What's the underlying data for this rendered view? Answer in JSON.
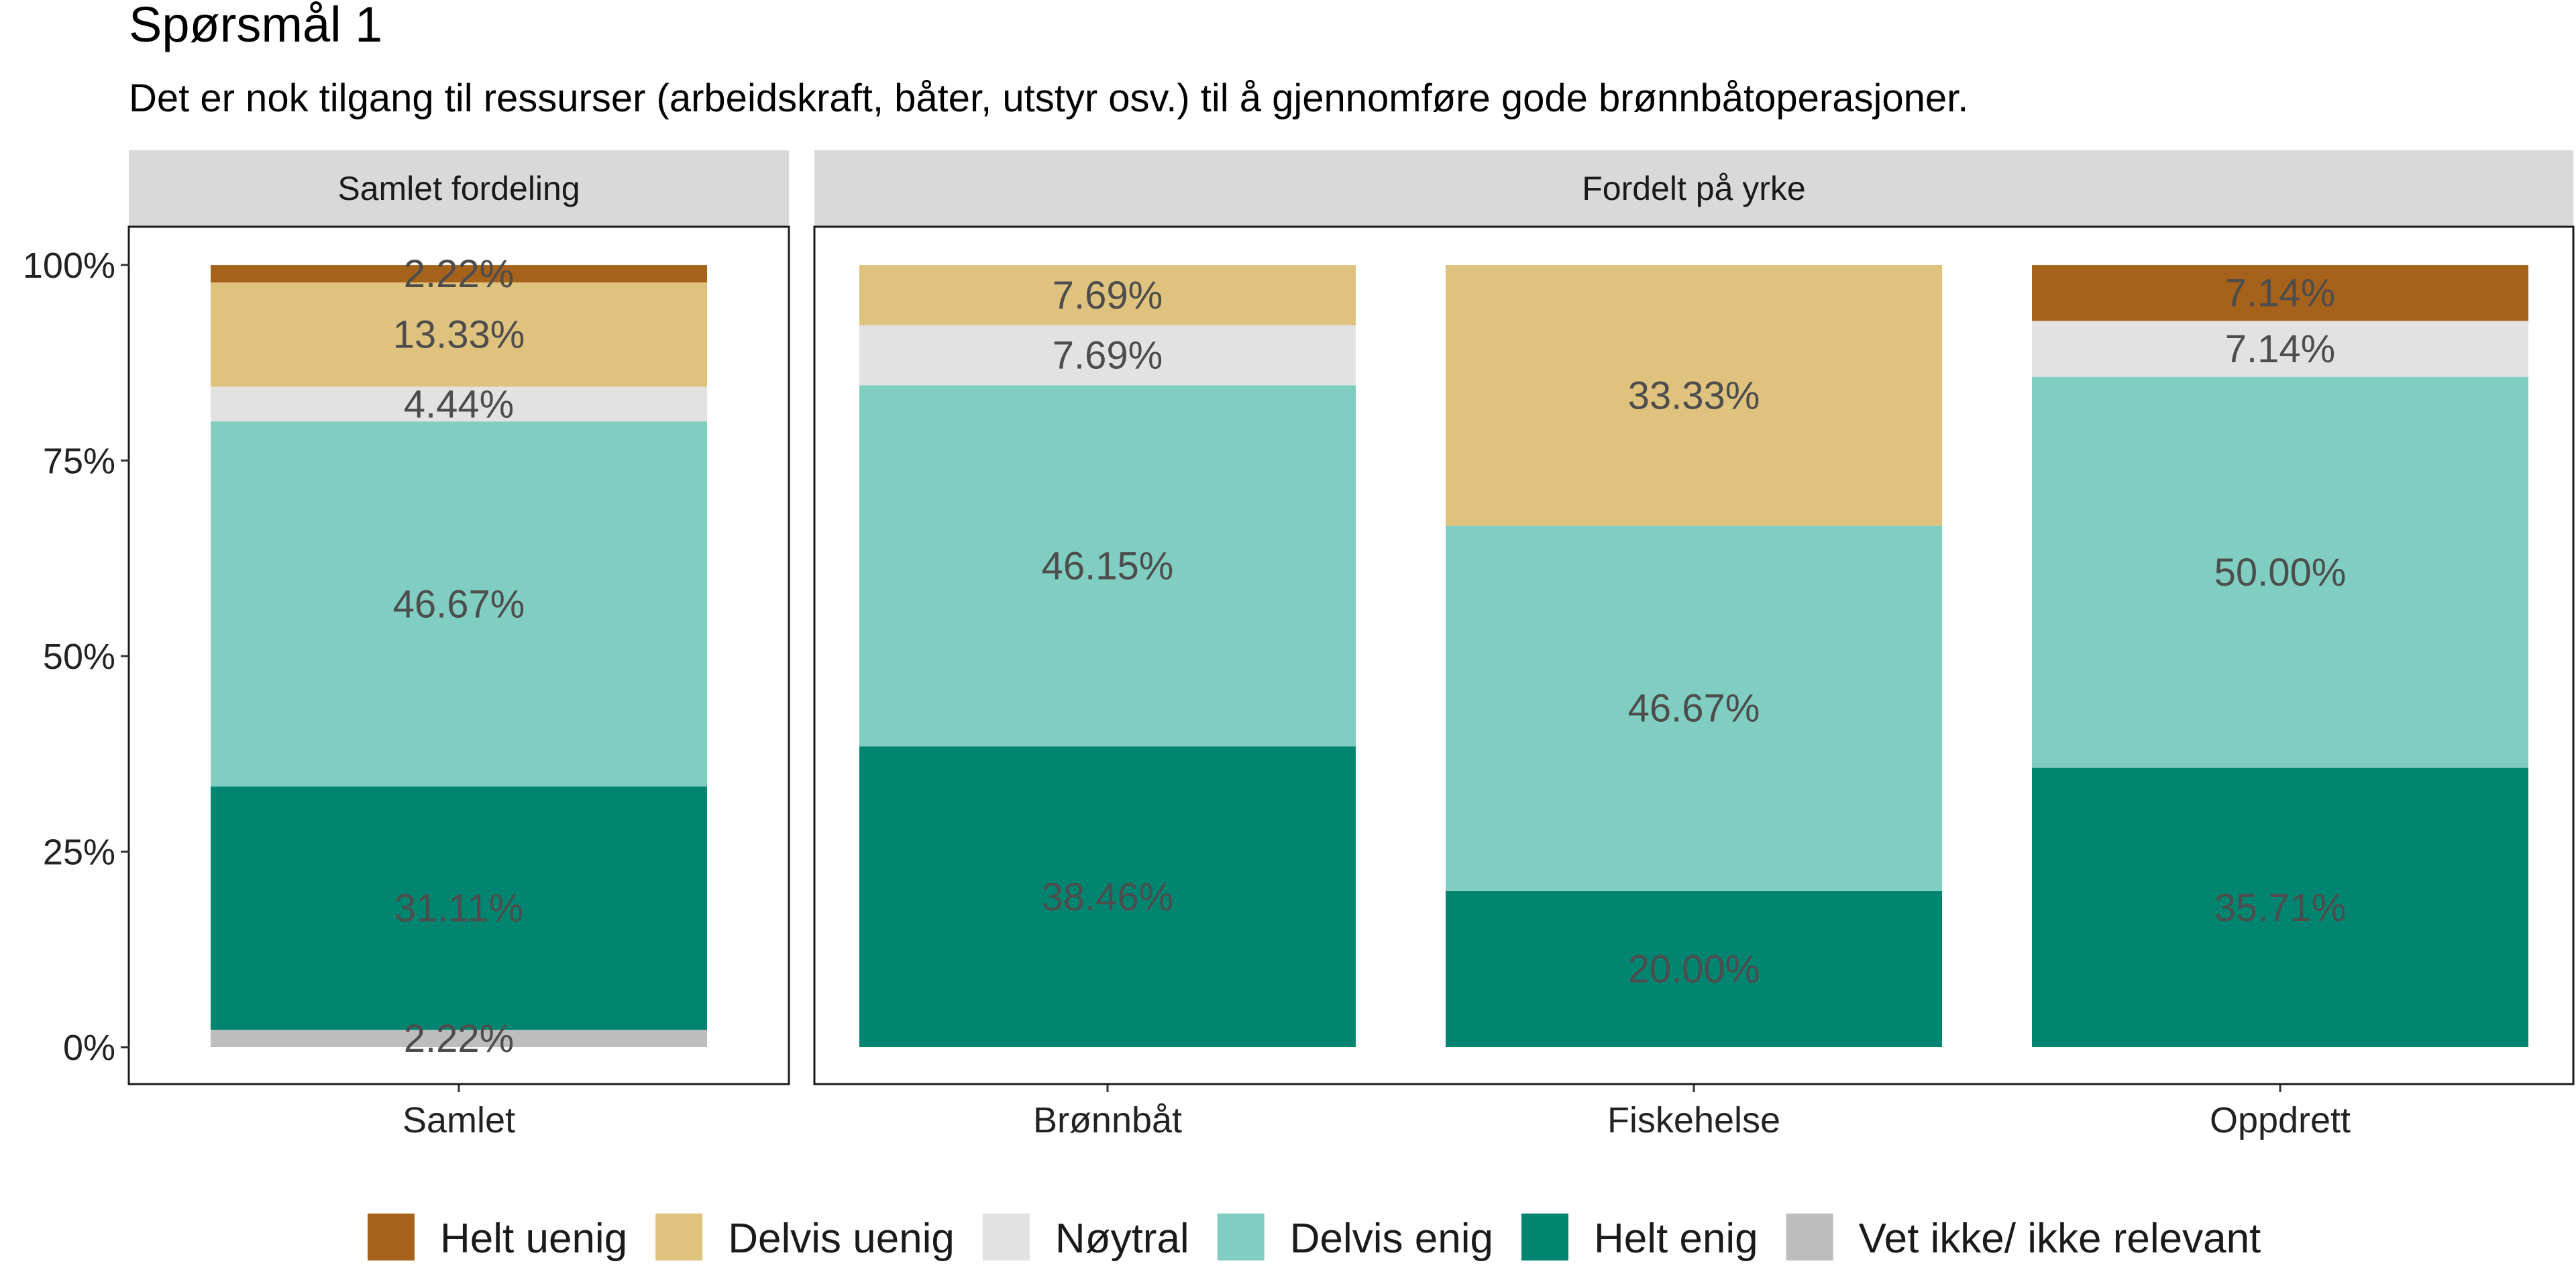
{
  "chart_data": {
    "type": "bar",
    "stacked": true,
    "percent": true,
    "title": "Spørsmål 1",
    "subtitle": "Det er nok tilgang til ressurser (arbeidskraft, båter, utstyr osv.) til å gjennomføre gode brønnbåtoperasjoner.",
    "ylim": [
      0,
      100
    ],
    "yticks": [
      "0%",
      "25%",
      "50%",
      "75%",
      "100%"
    ],
    "ytick_values": [
      0,
      25,
      50,
      75,
      100
    ],
    "legend_position": "bottom",
    "series": [
      {
        "name": "Vet ikke/ ikke relevant",
        "color": "#bdbdbd"
      },
      {
        "name": "Helt enig",
        "color": "#018571"
      },
      {
        "name": "Delvis enig",
        "color": "#80cdc1"
      },
      {
        "name": "Nøytral",
        "color": "#e2e2e2"
      },
      {
        "name": "Delvis uenig",
        "color": "#dfc27d"
      },
      {
        "name": "Helt uenig",
        "color": "#a6611a"
      }
    ],
    "legend_order": [
      "Helt uenig",
      "Delvis uenig",
      "Nøytral",
      "Delvis enig",
      "Helt enig",
      "Vet ikke/ ikke relevant"
    ],
    "panels": [
      {
        "strip": "Samlet fordeling",
        "categories": [
          "Samlet"
        ],
        "bars": [
          {
            "category": "Samlet",
            "segments": [
              {
                "series": "Vet ikke/ ikke relevant",
                "value": 2.22,
                "label": "2.22%"
              },
              {
                "series": "Helt enig",
                "value": 31.11,
                "label": "31.11%"
              },
              {
                "series": "Delvis enig",
                "value": 46.67,
                "label": "46.67%"
              },
              {
                "series": "Nøytral",
                "value": 4.44,
                "label": "4.44%"
              },
              {
                "series": "Delvis uenig",
                "value": 13.33,
                "label": "13.33%"
              },
              {
                "series": "Helt uenig",
                "value": 2.22,
                "label": "2.22%"
              }
            ]
          }
        ]
      },
      {
        "strip": "Fordelt på yrke",
        "categories": [
          "Brønnbåt",
          "Fiskehelse",
          "Oppdrett"
        ],
        "bars": [
          {
            "category": "Brønnbåt",
            "segments": [
              {
                "series": "Helt enig",
                "value": 38.46,
                "label": "38.46%"
              },
              {
                "series": "Delvis enig",
                "value": 46.15,
                "label": "46.15%"
              },
              {
                "series": "Nøytral",
                "value": 7.69,
                "label": "7.69%"
              },
              {
                "series": "Delvis uenig",
                "value": 7.69,
                "label": "7.69%"
              }
            ]
          },
          {
            "category": "Fiskehelse",
            "segments": [
              {
                "series": "Helt enig",
                "value": 20.0,
                "label": "20.00%"
              },
              {
                "series": "Delvis enig",
                "value": 46.67,
                "label": "46.67%"
              },
              {
                "series": "Delvis uenig",
                "value": 33.33,
                "label": "33.33%"
              }
            ]
          },
          {
            "category": "Oppdrett",
            "segments": [
              {
                "series": "Helt enig",
                "value": 35.71,
                "label": "35.71%"
              },
              {
                "series": "Delvis enig",
                "value": 50.0,
                "label": "50.00%"
              },
              {
                "series": "Nøytral",
                "value": 7.14,
                "label": "7.14%"
              },
              {
                "series": "Helt uenig",
                "value": 7.14,
                "label": "7.14%"
              }
            ]
          }
        ]
      }
    ]
  }
}
